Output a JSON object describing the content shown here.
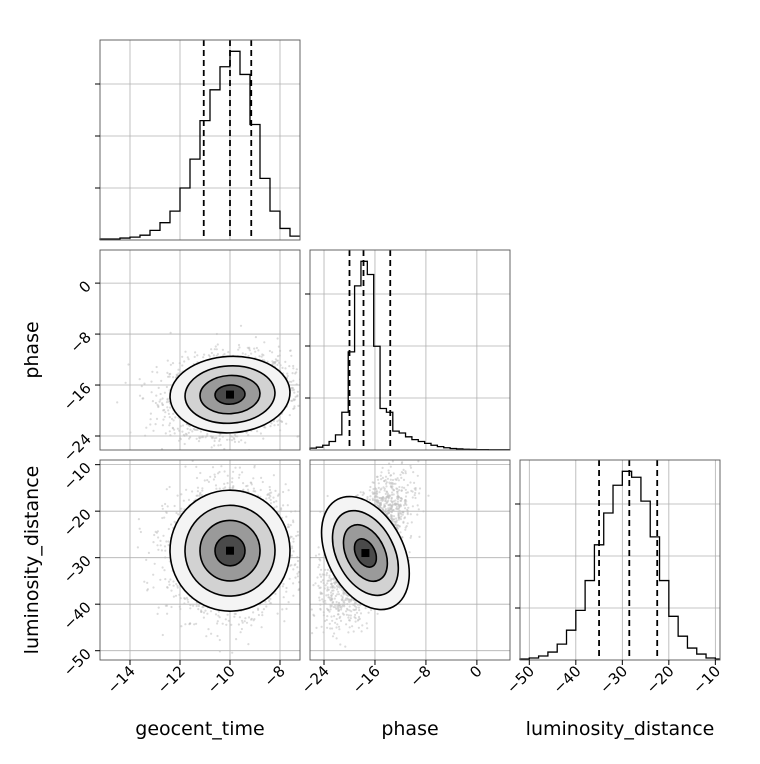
{
  "chart_data": {
    "type": "corner",
    "parameters": [
      "geocent_time",
      "phase",
      "luminosity_distance"
    ],
    "axis_labels": {
      "x": [
        "geocent_time",
        "phase",
        "luminosity_distance"
      ],
      "y": [
        "",
        "phase",
        "luminosity_distance"
      ]
    },
    "grid": true,
    "ranges": {
      "geocent_time": [
        -15.2,
        -7.2
      ],
      "phase": [
        -26.2,
        5.2
      ],
      "luminosity_distance": [
        -52.0,
        -9.0
      ]
    },
    "ticks": {
      "geocent_time": [
        -14,
        -12,
        -10,
        -8
      ],
      "phase": [
        -24,
        -16,
        -8,
        0
      ],
      "luminosity_distance": [
        -50,
        -40,
        -30,
        -20,
        -10
      ]
    },
    "tick_labels": {
      "geocent_time": [
        "−14",
        "−12",
        "−10",
        "−8"
      ],
      "phase": [
        "−24",
        "−16",
        "−8",
        "0"
      ],
      "luminosity_distance": [
        "−50",
        "−40",
        "−30",
        "−20",
        "−10"
      ]
    },
    "marginals": {
      "geocent_time": {
        "quantiles": [
          -11.05,
          -10.0,
          -9.15
        ],
        "bin_edges": [
          -15.2,
          -14.8,
          -14.4,
          -14.0,
          -13.6,
          -13.2,
          -12.8,
          -12.4,
          -12.0,
          -11.6,
          -11.2,
          -10.8,
          -10.4,
          -10.0,
          -9.6,
          -9.2,
          -8.8,
          -8.4,
          -8.0,
          -7.6,
          -7.2
        ],
        "heights": [
          0.005,
          0.005,
          0.01,
          0.015,
          0.025,
          0.05,
          0.09,
          0.15,
          0.27,
          0.42,
          0.62,
          0.78,
          0.9,
          0.98,
          0.86,
          0.6,
          0.32,
          0.15,
          0.06,
          0.02
        ]
      },
      "phase": {
        "quantiles": [
          -20.0,
          -17.8,
          -13.6
        ],
        "bin_edges": [
          -26.2,
          -25.2,
          -24.2,
          -23.2,
          -22.2,
          -21.2,
          -20.2,
          -19.2,
          -18.2,
          -17.2,
          -16.2,
          -15.2,
          -14.2,
          -13.2,
          -12.2,
          -11.2,
          -10.2,
          -9.2,
          -8.2,
          -7.2,
          -6.2,
          -5.2,
          -4.2,
          -3.2,
          -2.2,
          -1.2,
          -0.2,
          0.8,
          1.8,
          2.8,
          3.8,
          5.2
        ],
        "heights": [
          0.01,
          0.015,
          0.025,
          0.045,
          0.08,
          0.2,
          0.52,
          0.87,
          1.0,
          0.93,
          0.55,
          0.22,
          0.2,
          0.1,
          0.09,
          0.07,
          0.055,
          0.045,
          0.035,
          0.025,
          0.018,
          0.012,
          0.008,
          0.006,
          0.004,
          0.003,
          0.002,
          0.002,
          0.001,
          0.001,
          0.001
        ]
      },
      "luminosity_distance": {
        "quantiles": [
          -35.0,
          -28.5,
          -22.5
        ],
        "bin_edges": [
          -52.0,
          -50.0,
          -48.0,
          -46.0,
          -44.0,
          -42.0,
          -40.0,
          -38.0,
          -36.0,
          -34.0,
          -32.0,
          -30.0,
          -28.0,
          -26.0,
          -24.0,
          -22.0,
          -20.0,
          -18.0,
          -16.0,
          -14.0,
          -12.0,
          -10.0,
          -9.0
        ],
        "heights": [
          0.005,
          0.01,
          0.02,
          0.04,
          0.08,
          0.15,
          0.25,
          0.4,
          0.58,
          0.74,
          0.88,
          0.95,
          0.92,
          0.8,
          0.62,
          0.4,
          0.22,
          0.12,
          0.06,
          0.03,
          0.01,
          0.005
        ]
      }
    },
    "joint": {
      "phase_vs_geocent_time": {
        "center": [
          -10.0,
          -17.5
        ],
        "spread": [
          1.2,
          3.0
        ],
        "correlation": 0.15,
        "contour_levels": [
          0.5,
          1.0,
          1.5,
          2.0
        ]
      },
      "luminosity_distance_vs_geocent_time": {
        "center": [
          -10.0,
          -28.5
        ],
        "spread": [
          1.2,
          6.5
        ],
        "correlation": 0.05,
        "contour_levels": [
          0.5,
          1.0,
          1.5,
          2.0
        ]
      },
      "luminosity_distance_vs_phase": {
        "center": [
          -17.5,
          -29.0
        ],
        "spread": [
          3.0,
          6.5
        ],
        "correlation": 0.55,
        "contour_levels": [
          0.5,
          1.0,
          1.5,
          2.0
        ]
      }
    },
    "colors": {
      "line": "#000000",
      "grid": "#b0b0b0",
      "scatter": "#bdbdbd"
    }
  }
}
